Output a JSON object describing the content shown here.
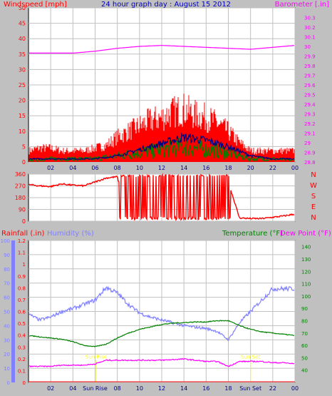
{
  "colors": {
    "background": "#c0c0c0",
    "plot_bg": "#ffffff",
    "wind": "#ff0000",
    "gust": "#ff0000",
    "wind_avg": "#000080",
    "wind_low": "#008000",
    "barometer": "#ff00ff",
    "direction": "#ff0000",
    "humidity": "#8080ff",
    "temperature": "#008000",
    "dewpoint": "#ff00ff",
    "title": "#0000c0",
    "sun_marker": "#ffff00",
    "grid": "#c0c0c0"
  },
  "header": {
    "left_title": "Windspeed [mph]",
    "center_title": "24 hour graph day : August 15 2012",
    "right_title": "Barometer [.in]"
  },
  "x_ticks": [
    "02",
    "04",
    "06",
    "08",
    "10",
    "12",
    "14",
    "16",
    "18",
    "20",
    "22",
    "00"
  ],
  "x_ticks_bottom": [
    "02",
    "04",
    "Sun Rise",
    "08",
    "10",
    "12",
    "14",
    "16",
    "18",
    "Sun Set",
    "22",
    "00"
  ],
  "compass": [
    "N",
    "W",
    "S",
    "E",
    "N"
  ],
  "labels_bottom": {
    "rainfall": "Rainfall (.in)",
    "humidity": "Humidity (%)",
    "temperature": "Temperature (°F)",
    "dewpoint": "Dew Point (°F)",
    "sunrise_marker": "Sun Rise",
    "sunset_marker": "Sun Set"
  },
  "chart_data": [
    {
      "type": "line",
      "title": "24 hour graph day : August 15 2012",
      "ylabel": "Windspeed [mph]",
      "ylabel_right": "Barometer [.in]",
      "ylim": [
        0,
        50
      ],
      "ylim_right": [
        28.8,
        30.4
      ],
      "yticks": [
        "0",
        "5",
        "10",
        "15",
        "20",
        "25",
        "30",
        "35",
        "40",
        "45",
        "50"
      ],
      "yticks_right": [
        "28.8",
        "28.9",
        "29",
        "29.1",
        "29.2",
        "29.3",
        "29.4",
        "29.5",
        "29.6",
        "29.7",
        "29.8",
        "29.9",
        "30",
        "30.1",
        "30.2",
        "30.3"
      ],
      "xlim_hours": [
        0,
        24
      ],
      "grid": true,
      "series": [
        {
          "name": "Windspeed [mph]",
          "x": [
            0,
            1,
            2,
            3,
            4,
            5,
            6,
            7,
            8,
            9,
            10,
            11,
            12,
            13,
            14,
            15,
            16,
            17,
            18,
            19,
            20,
            21,
            22,
            23,
            24
          ],
          "values": [
            3,
            3,
            4,
            3,
            3,
            3,
            3,
            4,
            6,
            7,
            9,
            10,
            11,
            13,
            15,
            14,
            13,
            11,
            8,
            5,
            3,
            3,
            3,
            3,
            3
          ]
        },
        {
          "name": "Gust",
          "x": [
            0,
            1,
            2,
            3,
            4,
            5,
            6,
            7,
            8,
            9,
            10,
            11,
            12,
            13,
            14,
            15,
            16,
            17,
            18,
            19,
            20,
            21,
            22,
            23,
            24
          ],
          "values": [
            4,
            5,
            5,
            4,
            4,
            4,
            5,
            6,
            9,
            11,
            13,
            15,
            16,
            18,
            19,
            17,
            16,
            14,
            11,
            7,
            4,
            4,
            4,
            4,
            4
          ]
        },
        {
          "name": "Average",
          "x": [
            0,
            2,
            4,
            6,
            8,
            10,
            12,
            14,
            16,
            18,
            20,
            22,
            24
          ],
          "values": [
            1,
            1,
            1,
            1,
            2,
            4,
            6,
            8,
            7,
            5,
            2,
            1,
            1
          ]
        },
        {
          "name": "Low",
          "x": [
            0,
            2,
            4,
            6,
            8,
            10,
            12,
            14,
            16,
            18,
            20,
            22,
            24
          ],
          "values": [
            0.5,
            1,
            1,
            1,
            2,
            3,
            4,
            5,
            4,
            3,
            1,
            1,
            0.5
          ]
        },
        {
          "name": "Barometer [.in]",
          "x": [
            0,
            2,
            4,
            6,
            8,
            10,
            12,
            14,
            16,
            18,
            20,
            22,
            24
          ],
          "values": [
            29.93,
            29.93,
            29.93,
            29.95,
            29.98,
            30.0,
            30.01,
            30.0,
            29.99,
            29.98,
            29.97,
            29.99,
            30.01
          ]
        }
      ]
    },
    {
      "type": "line",
      "title": "",
      "ylabel": "",
      "ylim": [
        0,
        360
      ],
      "yticks": [
        "0",
        "90",
        "180",
        "270",
        "360"
      ],
      "xlim_hours": [
        0,
        24
      ],
      "series": [
        {
          "name": "Wind direction",
          "x": [
            0,
            1,
            2,
            3,
            4,
            5,
            6,
            7,
            8,
            9,
            10,
            11,
            12,
            13,
            14,
            15,
            16,
            17,
            18,
            19,
            20,
            21,
            22,
            23,
            24
          ],
          "values": [
            280,
            270,
            265,
            285,
            275,
            270,
            300,
            330,
            340,
            20,
            15,
            18,
            17,
            19,
            16,
            22,
            21,
            60,
            300,
            25,
            20,
            20,
            30,
            40,
            55
          ]
        }
      ]
    },
    {
      "type": "line",
      "title": "",
      "ylabel": "Rainfall (.in)",
      "ylabel_mid": "Humidity (%)",
      "ylabel_right_a": "Temperature (°F)",
      "ylabel_right_b": "Dew Point (°F)",
      "ylim_rain": [
        0,
        1.2
      ],
      "ylim_humidity": [
        0,
        100
      ],
      "ylim_temp": [
        30,
        145
      ],
      "yticks_rain": [
        "0",
        "0.1",
        "0.2",
        "0.3",
        "0.4",
        "0.5",
        "0.6",
        "0.7",
        "0.8",
        "0.9",
        "1",
        "1.1",
        "1.2"
      ],
      "yticks_humidity": [
        "0",
        "10",
        "20",
        "30",
        "40",
        "50",
        "60",
        "70",
        "80",
        "90",
        "100"
      ],
      "yticks_temp": [
        "40",
        "50",
        "60",
        "70",
        "80",
        "90",
        "100",
        "110",
        "120",
        "130",
        "140"
      ],
      "xlim_hours": [
        0,
        24
      ],
      "series": [
        {
          "name": "Humidity (%)",
          "x": [
            0,
            1,
            2,
            3,
            4,
            5,
            6,
            7,
            8,
            9,
            10,
            11,
            12,
            13,
            14,
            15,
            16,
            17,
            18,
            19,
            20,
            21,
            22,
            23,
            24
          ],
          "values": [
            48,
            44,
            46,
            50,
            52,
            55,
            58,
            67,
            63,
            55,
            49,
            46,
            44,
            42,
            40,
            39,
            38,
            36,
            30,
            42,
            50,
            58,
            66,
            66,
            66
          ]
        },
        {
          "name": "Temperature (°F)",
          "x": [
            0,
            1,
            2,
            3,
            4,
            5,
            6,
            7,
            8,
            9,
            10,
            11,
            12,
            13,
            14,
            15,
            16,
            17,
            18,
            19,
            20,
            21,
            22,
            23,
            24
          ],
          "values": [
            68,
            67,
            66,
            65,
            63,
            60,
            59,
            61,
            66,
            70,
            73,
            75,
            77,
            78,
            78.5,
            79,
            79,
            80,
            80,
            76,
            73,
            71,
            70,
            69,
            68
          ]
        },
        {
          "name": "Dew Point (°F)",
          "x": [
            0,
            1,
            2,
            3,
            4,
            5,
            6,
            7,
            8,
            9,
            10,
            11,
            12,
            13,
            14,
            15,
            16,
            17,
            18,
            19,
            20,
            21,
            22,
            23,
            24
          ],
          "values": [
            43,
            43,
            43,
            44,
            44,
            44,
            45,
            48,
            48,
            48,
            48,
            48,
            48,
            48.5,
            49,
            48,
            47,
            47,
            43,
            47,
            47,
            47,
            46,
            46,
            45
          ]
        }
      ]
    }
  ]
}
